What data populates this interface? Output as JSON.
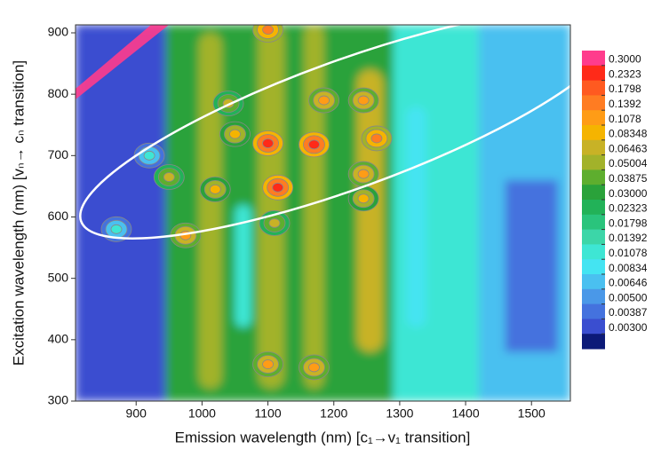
{
  "chart_data": {
    "type": "contour",
    "x_label": "Emission wavelength  (nm)   [c₁→v₁ transition]",
    "y_label": "Excitation wavelength  (nm)   [vₙ→ cₙ transition]",
    "xlim": [
      808,
      1559
    ],
    "xticks": [
      900,
      1000,
      1100,
      1200,
      1300,
      1400,
      1500
    ],
    "ylim": [
      300,
      913
    ],
    "yticks": [
      300,
      400,
      500,
      600,
      700,
      800,
      900
    ],
    "colorbar": {
      "levels": [
        {
          "value": 0.3,
          "label": "0.3000"
        },
        0.2323,
        0.1798,
        0.1392,
        0.1078,
        0.08348,
        0.06463,
        0.05004,
        0.03875,
        {
          "value": 0.03,
          "label": "0.03000"
        },
        0.02323,
        0.01798,
        0.01392,
        0.01078,
        0.00834,
        0.00646,
        {
          "value": 0.005,
          "label": "0.00500"
        },
        0.00387,
        {
          "value": 0.003,
          "label": "0.00300"
        }
      ],
      "colors": [
        "#ff3c8c",
        "#ff2a18",
        "#ff5a20",
        "#ff7c22",
        "#ff9c16",
        "#f5b400",
        "#c8b226",
        "#a2b22a",
        "#5eae2e",
        "#2aa23a",
        "#22b258",
        "#2ac47c",
        "#3cd6a8",
        "#3ee6d4",
        "#44e4f2",
        "#4ac0f0",
        "#4a98e8",
        "#4472de",
        "#3a4ed0",
        "#0c1a78"
      ]
    },
    "regions": [
      {
        "x": [
          808,
          945
        ],
        "y": [
          300,
          913
        ],
        "level": 0.003
      },
      {
        "x": [
          945,
          1290
        ],
        "y": [
          300,
          913
        ],
        "level": 0.03
      },
      {
        "x": [
          1290,
          1420
        ],
        "y": [
          300,
          913
        ],
        "level": 0.01078
      },
      {
        "x": [
          1420,
          1559
        ],
        "y": [
          300,
          913
        ],
        "level": 0.00646
      },
      {
        "x": [
          1460,
          1540
        ],
        "y": [
          380,
          660
        ],
        "level": 0.00387
      },
      {
        "x": [
          995,
          1030
        ],
        "y": [
          320,
          900
        ],
        "level": 0.05004
      },
      {
        "x": [
          1085,
          1125
        ],
        "y": [
          320,
          913
        ],
        "level": 0.05004
      },
      {
        "x": [
          1155,
          1185
        ],
        "y": [
          320,
          913
        ],
        "level": 0.05004
      },
      {
        "x": [
          1235,
          1275
        ],
        "y": [
          380,
          840
        ],
        "level": 0.06463
      },
      {
        "x": [
          1050,
          1075
        ],
        "y": [
          420,
          620
        ],
        "level": 0.01078
      },
      {
        "x": [
          1310,
          1340
        ],
        "y": [
          420,
          780
        ],
        "level": 0.00834
      }
    ],
    "peaks": [
      {
        "x": 870,
        "y": 580,
        "intensity": 0.01078
      },
      {
        "x": 920,
        "y": 700,
        "intensity": 0.01078
      },
      {
        "x": 950,
        "y": 665,
        "intensity": 0.06463
      },
      {
        "x": 975,
        "y": 570,
        "intensity": 0.1078
      },
      {
        "x": 1020,
        "y": 645,
        "intensity": 0.08348
      },
      {
        "x": 1050,
        "y": 735,
        "intensity": 0.08348
      },
      {
        "x": 1040,
        "y": 785,
        "intensity": 0.06463
      },
      {
        "x": 1100,
        "y": 720,
        "intensity": 0.2323
      },
      {
        "x": 1115,
        "y": 648,
        "intensity": 0.2323
      },
      {
        "x": 1110,
        "y": 590,
        "intensity": 0.06463
      },
      {
        "x": 1170,
        "y": 718,
        "intensity": 0.2323
      },
      {
        "x": 1185,
        "y": 790,
        "intensity": 0.1078
      },
      {
        "x": 1245,
        "y": 670,
        "intensity": 0.1078
      },
      {
        "x": 1245,
        "y": 630,
        "intensity": 0.08348
      },
      {
        "x": 1265,
        "y": 728,
        "intensity": 0.1392
      },
      {
        "x": 1245,
        "y": 790,
        "intensity": 0.1078
      },
      {
        "x": 1100,
        "y": 905,
        "intensity": 0.1392
      },
      {
        "x": 1100,
        "y": 360,
        "intensity": 0.1078
      },
      {
        "x": 1170,
        "y": 355,
        "intensity": 0.1078
      }
    ]
  }
}
